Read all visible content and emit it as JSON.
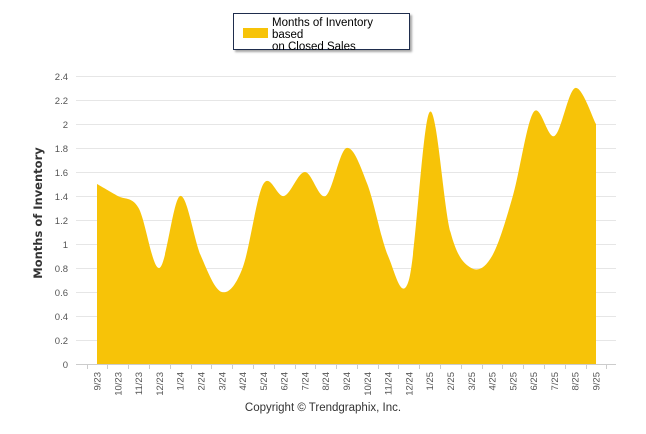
{
  "legend": {
    "label": "Months of Inventory based on Closed Sales",
    "label_line1": "Months of Inventory based",
    "label_line2": "on Closed Sales",
    "color": "#F7C308"
  },
  "footer": {
    "copyright": "Copyright © Trendgraphix, Inc."
  },
  "chart_data": {
    "type": "area",
    "title": "",
    "xlabel": "",
    "ylabel": "Months of Inventory",
    "ylim": [
      0,
      2.4
    ],
    "yticks": [
      "0",
      "0.2",
      "0.4",
      "0.6",
      "0.8",
      "1",
      "1.2",
      "1.4",
      "1.6",
      "1.8",
      "2",
      "2.2",
      "2.4"
    ],
    "grid": true,
    "legend_position": "top-center",
    "categories": [
      "9/23",
      "10/23",
      "11/23",
      "12/23",
      "1/24",
      "2/24",
      "3/24",
      "4/24",
      "5/24",
      "6/24",
      "7/24",
      "8/24",
      "9/24",
      "10/24",
      "11/24",
      "12/24",
      "1/25",
      "2/25",
      "3/25",
      "4/25",
      "5/25",
      "6/25",
      "7/25",
      "8/25",
      "9/25"
    ],
    "series": [
      {
        "name": "Months of Inventory based on Closed Sales",
        "color": "#F7C308",
        "values": [
          1.5,
          1.4,
          1.3,
          0.8,
          1.4,
          0.9,
          0.6,
          0.8,
          1.5,
          1.4,
          1.6,
          1.4,
          1.8,
          1.5,
          0.9,
          0.7,
          2.1,
          1.1,
          0.8,
          0.9,
          1.4,
          2.1,
          1.9,
          2.3,
          2.0
        ]
      }
    ]
  }
}
